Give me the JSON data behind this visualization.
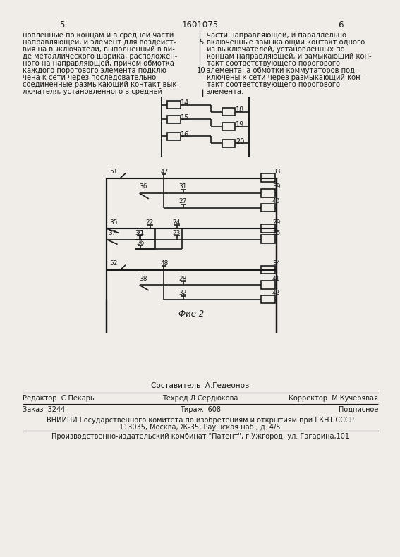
{
  "page_number_left": "5",
  "page_number_center": "1601075",
  "page_number_right": "6",
  "text_left": "новленные по концам и в средней части\nнаправляющей, и элемент для воздейст-\nвия на выключатели, выполненный в ви-\nде металлического шарика, расположен-\nного на направляющей, причем обмотка\nкаждого порогового элемента подклю-\nчена к сети через последовательно\nсоединенные размыкающий контакт вык-\nлючателя, установленного в средней",
  "text_right": "части направляющей, и параллельно\nвключенные замыкающий контакт одного\nиз выключателей, установленных по\nконцам направляющей, и замыкающий кон-\nтакт соответствующего порогового\nэлемента, а обмотки коммутаторов под-\nключены к сети через размыкающий кон-\nтакт соответствующего порогового\nэлемента.",
  "line_num_5": "5",
  "line_num_10": "10",
  "fig1_caption": "Фие 2",
  "footer_author": "Составитель  А.Гедеонов",
  "footer_editor": "Редактор  С.Пекарь",
  "footer_tech": "Техред Л.Сердюкова",
  "footer_corrector": "Корректор  М.Кучерявая",
  "footer_order": "Заказ  3244",
  "footer_tirazh": "Тираж  608",
  "footer_podp": "Подписное",
  "footer_vniiipi": "ВНИИПИ Государственного комитета по изобретениям и открытиям при ГКНТ СССР",
  "footer_addr": "113035, Москва, Ж-35, Раушская наб., д. 4/5",
  "footer_prod": "Производственно-издательский комбинат \"Патент\", г.Ужгород, ул. Гагарина,101",
  "bg_color": "#f0ede8",
  "lc": "#1a1a1a",
  "tc": "#1a1a1a"
}
